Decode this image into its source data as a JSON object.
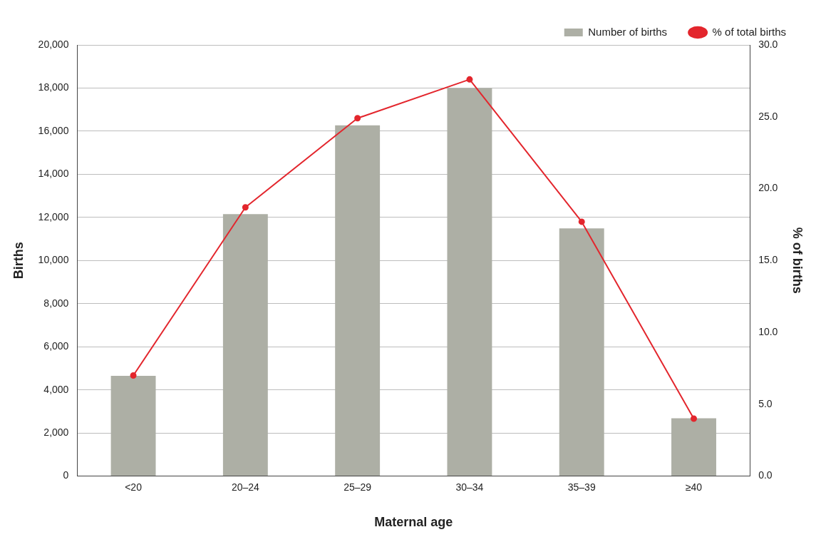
{
  "chart_data": {
    "type": "bar",
    "xlabel": "Maternal age",
    "ylabel": "Births",
    "y2label": "% of births",
    "categories": [
      "<20",
      "20–24",
      "25–29",
      "30–34",
      "35–39",
      "≥40"
    ],
    "series": [
      {
        "name": "Number of births",
        "color": "#adafa5",
        "values": [
          4650,
          12150,
          16270,
          18000,
          11490,
          2680
        ]
      },
      {
        "name": "% of total births",
        "type": "line",
        "axis": "y2",
        "color": "#e3262d",
        "marker": "circle",
        "values": [
          7.0,
          18.7,
          24.9,
          27.6,
          17.7,
          4.0
        ]
      }
    ],
    "ylim": [
      0,
      20000
    ],
    "yticks": [
      0,
      {
        "value": 2000,
        "label": "2,000"
      },
      {
        "value": 4000,
        "label": "4,000"
      },
      {
        "value": 6000,
        "label": "6,000"
      },
      {
        "value": 8000,
        "label": "8,000"
      },
      {
        "value": 10000,
        "label": "10,000"
      },
      {
        "value": 12000,
        "label": "12,000"
      },
      {
        "value": 14000,
        "label": "14,000"
      },
      {
        "value": 16000,
        "label": "16,000"
      },
      {
        "value": 18000,
        "label": "18,000"
      },
      {
        "value": 20000,
        "label": "20,000"
      }
    ],
    "y2lim": [
      0,
      30
    ],
    "y2ticks": [
      {
        "value": 0,
        "label": "0.0"
      },
      {
        "value": 5,
        "label": "5.0"
      },
      {
        "value": 10,
        "label": "10.0"
      },
      {
        "value": 15,
        "label": "15.0"
      },
      {
        "value": 20,
        "label": "20.0"
      },
      {
        "value": 25,
        "label": "25.0"
      },
      {
        "value": 30,
        "label": "30.0"
      }
    ],
    "grid": "y",
    "legend": "top right"
  }
}
